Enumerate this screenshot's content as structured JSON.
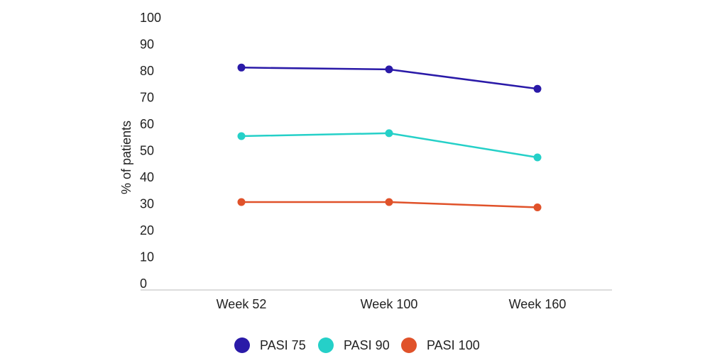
{
  "chart_data": {
    "type": "line",
    "categories": [
      "Week 52",
      "Week 100",
      "Week 160"
    ],
    "series": [
      {
        "name": "PASI 75",
        "values": [
          81,
          80.3,
          73
        ],
        "color": "#2a1aa8"
      },
      {
        "name": "PASI 90",
        "values": [
          55.2,
          56.3,
          47.2
        ],
        "color": "#25d0c8"
      },
      {
        "name": "PASI 100",
        "values": [
          30.4,
          30.4,
          28.4
        ],
        "color": "#e0522a"
      }
    ],
    "yticks": [
      "0",
      "10",
      "20",
      "30",
      "40",
      "50",
      "60",
      "70",
      "80",
      "90",
      "100"
    ],
    "ylabel": "% of patients",
    "xlabel": "",
    "ylim": [
      0,
      100
    ],
    "grid": false,
    "legend": "bottom-center"
  }
}
